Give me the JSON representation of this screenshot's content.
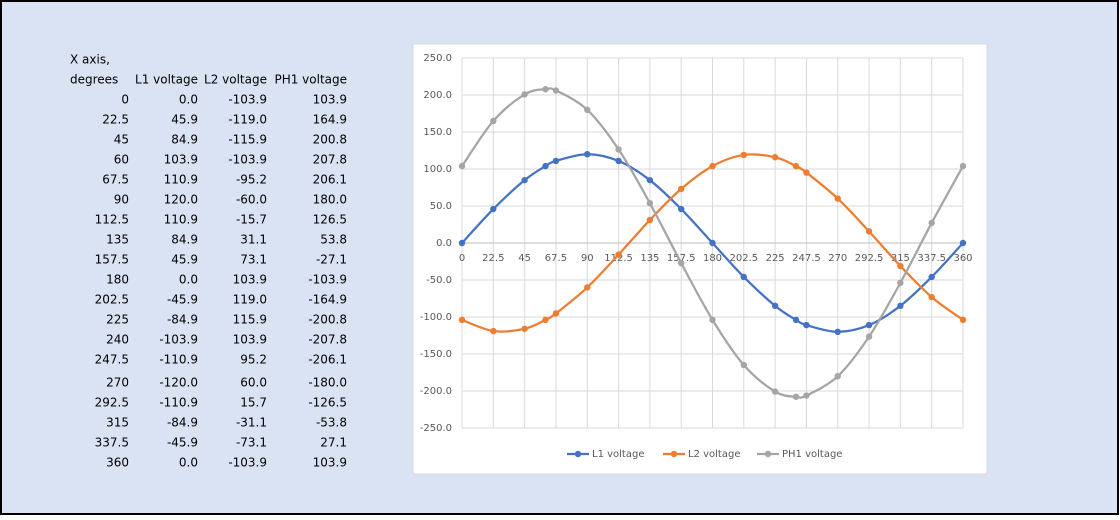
{
  "table": {
    "header_top": "X axis,",
    "header": [
      "degrees",
      "L1 voltage",
      "L2 voltage",
      "PH1 voltage"
    ],
    "rows": [
      [
        "0",
        "0.0",
        "-103.9",
        "103.9"
      ],
      [
        "22.5",
        "45.9",
        "-119.0",
        "164.9"
      ],
      [
        "45",
        "84.9",
        "-115.9",
        "200.8"
      ],
      [
        "60",
        "103.9",
        "-103.9",
        "207.8"
      ],
      [
        "67.5",
        "110.9",
        "-95.2",
        "206.1"
      ],
      [
        "90",
        "120.0",
        "-60.0",
        "180.0"
      ],
      [
        "112.5",
        "110.9",
        "-15.7",
        "126.5"
      ],
      [
        "135",
        "84.9",
        "31.1",
        "53.8"
      ],
      [
        "157.5",
        "45.9",
        "73.1",
        "-27.1"
      ],
      [
        "180",
        "0.0",
        "103.9",
        "-103.9"
      ],
      [
        "202.5",
        "-45.9",
        "119.0",
        "-164.9"
      ],
      [
        "225",
        "-84.9",
        "115.9",
        "-200.8"
      ],
      [
        "240",
        "-103.9",
        "103.9",
        "-207.8"
      ],
      [
        "247.5",
        "-110.9",
        "95.2",
        "-206.1"
      ],
      [
        "270",
        "-120.0",
        "60.0",
        "-180.0"
      ],
      [
        "292.5",
        "-110.9",
        "15.7",
        "-126.5"
      ],
      [
        "315",
        "-84.9",
        "-31.1",
        "-53.8"
      ],
      [
        "337.5",
        "-45.9",
        "-73.1",
        "27.1"
      ],
      [
        "360",
        "0.0",
        "-103.9",
        "103.9"
      ]
    ]
  },
  "chart_data": {
    "type": "line",
    "x": [
      0,
      22.5,
      45,
      60,
      67.5,
      90,
      112.5,
      135,
      157.5,
      180,
      202.5,
      225,
      240,
      247.5,
      270,
      292.5,
      315,
      337.5,
      360
    ],
    "series": [
      {
        "name": "L1 voltage",
        "color": "#4472c4",
        "values": [
          0,
          45.9,
          84.9,
          103.9,
          110.9,
          120,
          110.9,
          84.9,
          45.9,
          0,
          -45.9,
          -84.9,
          -103.9,
          -110.9,
          -120,
          -110.9,
          -84.9,
          -45.9,
          0
        ]
      },
      {
        "name": "L2 voltage",
        "color": "#ed7d31",
        "values": [
          -103.9,
          -119,
          -115.9,
          -103.9,
          -95.2,
          -60,
          -15.7,
          31.1,
          73.1,
          103.9,
          119,
          115.9,
          103.9,
          95.2,
          60,
          15.7,
          -31.1,
          -73.1,
          -103.9
        ]
      },
      {
        "name": "PH1 voltage",
        "color": "#a5a5a5",
        "values": [
          103.9,
          164.9,
          200.8,
          207.8,
          206.1,
          180,
          126.5,
          53.8,
          -27.1,
          -103.9,
          -164.9,
          -200.8,
          -207.8,
          -206.1,
          -180,
          -126.5,
          -53.8,
          27.1,
          103.9
        ]
      }
    ],
    "xlim": [
      0,
      360
    ],
    "xticks": [
      0,
      22.5,
      45,
      67.5,
      90,
      112.5,
      135,
      157.5,
      180,
      202.5,
      225,
      247.5,
      270,
      292.5,
      315,
      337.5,
      360
    ],
    "ylim": [
      -250,
      250
    ],
    "yticks": [
      {
        "value": -250,
        "label": "-250.0"
      },
      {
        "value": -200,
        "label": "-200.0"
      },
      {
        "value": -150,
        "label": "-150.0"
      },
      {
        "value": -100,
        "label": "-100.0"
      },
      {
        "value": -50,
        "label": "-50.0"
      },
      {
        "value": 0,
        "label": "0.0"
      },
      {
        "value": 50,
        "label": "50.0"
      },
      {
        "value": 100,
        "label": "100.0"
      },
      {
        "value": 150,
        "label": "150.0"
      },
      {
        "value": 200,
        "label": "200.0"
      },
      {
        "value": 250,
        "label": "250.0"
      }
    ],
    "grid": true,
    "smooth": true,
    "legend": "bottom"
  }
}
